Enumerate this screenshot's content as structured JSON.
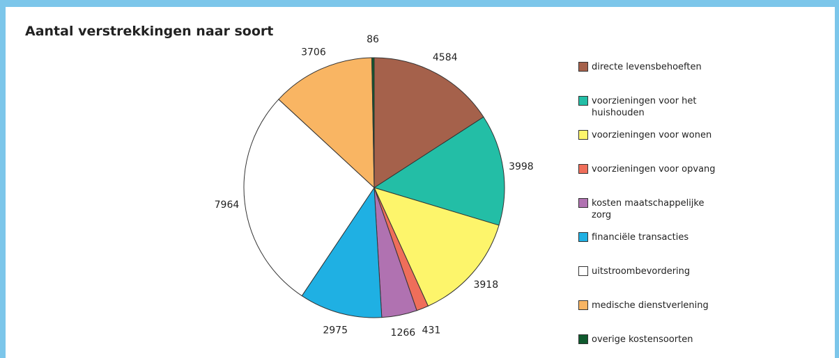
{
  "chart_data": {
    "type": "pie",
    "title": "Aantal verstrekkingen naar soort",
    "categories": [
      "directe levensbehoeften",
      "voorzieningen voor het huishouden",
      "voorzieningen voor wonen",
      "voorzieningen voor opvang",
      "kosten maatschappelijke zorg",
      "financiële transacties",
      "uitstroombevordering",
      "medische dienstverlening",
      "overige kostensoorten"
    ],
    "values": [
      4584,
      3998,
      3918,
      431,
      1266,
      2975,
      7964,
      3706,
      86
    ],
    "colors": [
      "#a5614b",
      "#23bea6",
      "#fdf56b",
      "#ef6e5a",
      "#b072b1",
      "#1fb0e3",
      "#ffffff",
      "#f9b563",
      "#0f5a2e"
    ]
  }
}
